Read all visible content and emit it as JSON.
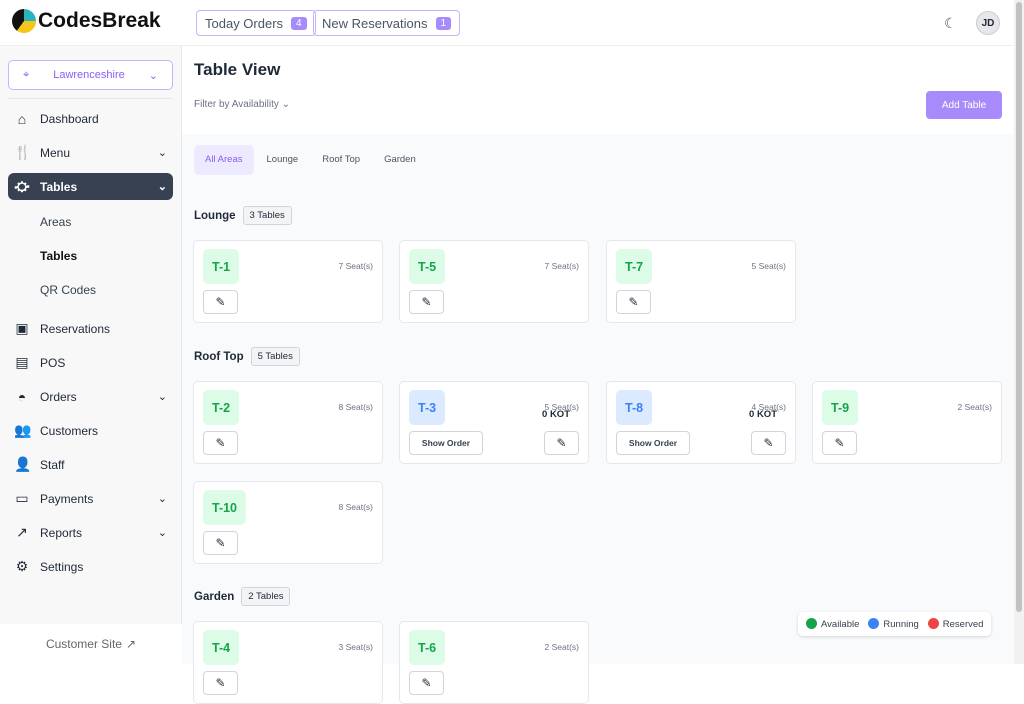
{
  "header": {
    "brand": "CodesBreak",
    "today_orders": "Today Orders",
    "today_orders_count": "4",
    "new_reservations": "New Reservations",
    "new_reservations_count": "1",
    "avatar": "JD"
  },
  "sidebar": {
    "location": "Lawrenceshire",
    "items": [
      {
        "label": "Dashboard",
        "icon": "home-icon",
        "glyph": "⌂"
      },
      {
        "label": "Menu",
        "icon": "menu-icon",
        "glyph": "🍴",
        "chev": true
      },
      {
        "label": "Tables",
        "icon": "table-icon",
        "glyph": "⛮",
        "chev": true,
        "active": true
      },
      {
        "label": "Reservations",
        "icon": "calendar-icon",
        "glyph": "▣"
      },
      {
        "label": "POS",
        "icon": "pos-icon",
        "glyph": "▤"
      },
      {
        "label": "Orders",
        "icon": "cloche-icon",
        "glyph": "◓",
        "chev": true
      },
      {
        "label": "Customers",
        "icon": "users-icon",
        "glyph": "👥"
      },
      {
        "label": "Staff",
        "icon": "staff-icon",
        "glyph": "👤"
      },
      {
        "label": "Payments",
        "icon": "wallet-icon",
        "glyph": "▭",
        "chev": true
      },
      {
        "label": "Reports",
        "icon": "chart-icon",
        "glyph": "↗",
        "chev": true
      },
      {
        "label": "Settings",
        "icon": "gear-icon",
        "glyph": "⚙"
      }
    ],
    "subitems": [
      "Areas",
      "Tables",
      "QR Codes"
    ],
    "customer_site": "Customer Site"
  },
  "main": {
    "title": "Table View",
    "filter": "Filter by Availability",
    "add_table": "Add Table",
    "tabs": [
      "All Areas",
      "Lounge",
      "Roof Top",
      "Garden"
    ],
    "areas": [
      {
        "name": "Lounge",
        "count": "3 Tables",
        "tables": [
          {
            "id": "T-1",
            "seats": "7 Seat(s)",
            "status": "available"
          },
          {
            "id": "T-5",
            "seats": "7 Seat(s)",
            "status": "available"
          },
          {
            "id": "T-7",
            "seats": "5 Seat(s)",
            "status": "available"
          }
        ]
      },
      {
        "name": "Roof Top",
        "count": "5 Tables",
        "tables": [
          {
            "id": "T-2",
            "seats": "8 Seat(s)",
            "status": "available"
          },
          {
            "id": "T-3",
            "seats": "5 Seat(s)",
            "status": "running",
            "kot": "0 KOT",
            "show": "Show Order"
          },
          {
            "id": "T-8",
            "seats": "4 Seat(s)",
            "status": "running",
            "kot": "0 KOT",
            "show": "Show Order"
          },
          {
            "id": "T-9",
            "seats": "2 Seat(s)",
            "status": "available"
          },
          {
            "id": "T-10",
            "seats": "8 Seat(s)",
            "status": "available"
          }
        ]
      },
      {
        "name": "Garden",
        "count": "2 Tables",
        "tables": [
          {
            "id": "T-4",
            "seats": "3 Seat(s)",
            "status": "available"
          },
          {
            "id": "T-6",
            "seats": "2 Seat(s)",
            "status": "available"
          }
        ]
      }
    ]
  },
  "legend": [
    {
      "label": "Available",
      "color": "#16a34a"
    },
    {
      "label": "Running",
      "color": "#3b82f6"
    },
    {
      "label": "Reserved",
      "color": "#ef4444"
    }
  ]
}
